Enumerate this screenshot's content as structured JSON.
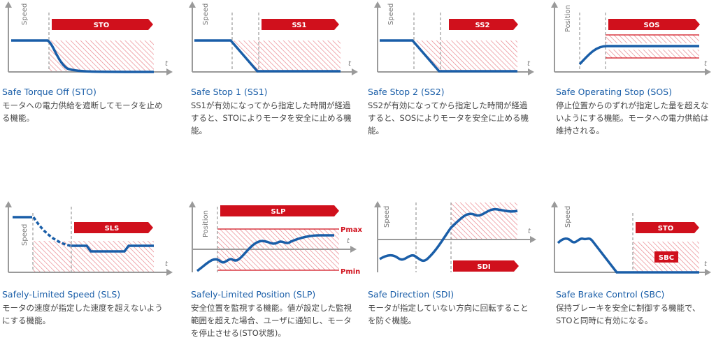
{
  "colors": {
    "red": "#d0101c",
    "blue": "#1a5ea8",
    "axis": "#9a9a9a",
    "hatch": "#e87e86",
    "text": "#444444"
  },
  "panels": [
    {
      "id": "sto",
      "title": "Safe Torque Off (STO)",
      "desc": "モータへの電力供給を遮断してモータを止める機能。",
      "ylabel": "Speed",
      "xlabel": "t",
      "banners": [
        "STO"
      ]
    },
    {
      "id": "ss1",
      "title": "Safe Stop 1 (SS1)",
      "desc": "SS1が有効になってから指定した時間が経過すると、STOによりモータを安全に止める機能。",
      "ylabel": "Speed",
      "xlabel": "t",
      "banners": [
        "SS1"
      ]
    },
    {
      "id": "ss2",
      "title": "Safe Stop 2 (SS2)",
      "desc": "SS2が有効になってから指定した時間が経過すると、SOSによりモータを安全に止める機能。",
      "ylabel": "Speed",
      "xlabel": "t",
      "banners": [
        "SS2"
      ]
    },
    {
      "id": "sos",
      "title": "Safe Operating Stop (SOS)",
      "desc": "停止位置からのずれが指定した量を超えないようにする機能。モータへの電力供給は維持される。",
      "ylabel": "Position",
      "xlabel": "t",
      "banners": [
        "SOS"
      ]
    },
    {
      "id": "sls",
      "title": "Safely-Limited Speed (SLS)",
      "desc": "モータの速度が指定した速度を超えないようにする機能。",
      "ylabel": "Speed",
      "xlabel": "t",
      "banners": [
        "SLS"
      ]
    },
    {
      "id": "slp",
      "title": "Safely-Limited Position (SLP)",
      "desc": "安全位置を監視する機能。値が設定した監視範囲を超えた場合、ユーザに通知し、モータを停止させる(STO状態)。",
      "ylabel": "Position",
      "xlabel": "t",
      "banners": [
        "SLP"
      ],
      "pmax": "Pmax",
      "pmin": "Pmin"
    },
    {
      "id": "sdi",
      "title": "Safe Direction (SDI)",
      "desc": "モータが指定していない方向に回転することを防ぐ機能。",
      "ylabel": "Speed",
      "xlabel": "t",
      "banners": [
        "SDI"
      ]
    },
    {
      "id": "sbc",
      "title": "Safe Brake Control (SBC)",
      "desc": "保持ブレーキを安全に制御する機能で、STOと同時に有効になる。",
      "ylabel": "Speed",
      "xlabel": "t",
      "banners": [
        "STO",
        "SBC"
      ]
    }
  ]
}
